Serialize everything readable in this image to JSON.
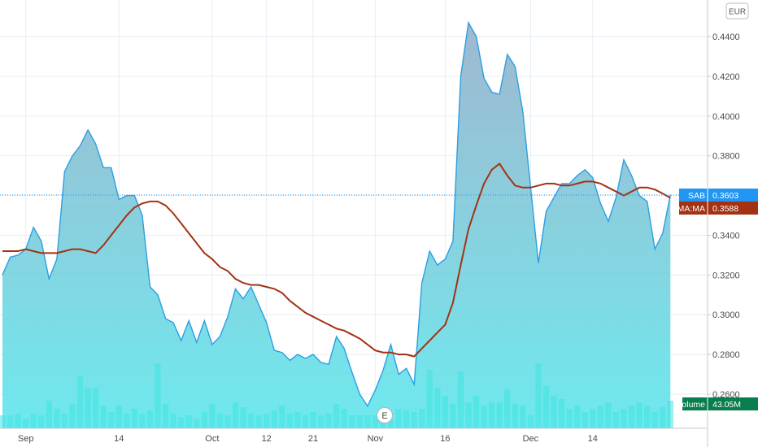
{
  "currency_button": "EUR",
  "event_marker": "E",
  "colors": {
    "price_line": "#2b9ee3",
    "price_fill_top": "#9fb8d0",
    "price_fill_bottom": "#6ee9ee",
    "volume_bar": "#3fe3e0",
    "ema_line": "#a33213",
    "price_tag": "#2196f3",
    "ema_tag": "#a33213",
    "volume_tag": "#0a7d4e",
    "grid": "#e6eef5"
  },
  "chart_data": {
    "type": "area",
    "ylim": [
      0.245,
      0.453
    ],
    "y_ticks": [
      "0.4400",
      "0.4200",
      "0.4000",
      "0.3800",
      "0.3600",
      "0.3400",
      "0.3200",
      "0.3000",
      "0.2800",
      "0.2600"
    ],
    "x_ticks": [
      "Sep",
      "14",
      "Oct",
      "12",
      "21",
      "Nov",
      "16",
      "Dec",
      "14"
    ],
    "x_tick_index": [
      3,
      15,
      27,
      34,
      40,
      48,
      57,
      68,
      76
    ],
    "series": [
      {
        "name": "SAB",
        "kind": "area",
        "last_label": "0.3603",
        "values": [
          0.32,
          0.329,
          0.33,
          0.333,
          0.344,
          0.337,
          0.318,
          0.328,
          0.372,
          0.38,
          0.385,
          0.393,
          0.386,
          0.374,
          0.374,
          0.358,
          0.36,
          0.36,
          0.35,
          0.314,
          0.31,
          0.298,
          0.296,
          0.287,
          0.297,
          0.286,
          0.297,
          0.285,
          0.289,
          0.299,
          0.313,
          0.308,
          0.314,
          0.305,
          0.296,
          0.282,
          0.281,
          0.277,
          0.28,
          0.278,
          0.28,
          0.276,
          0.275,
          0.289,
          0.283,
          0.271,
          0.26,
          0.254,
          0.262,
          0.272,
          0.285,
          0.27,
          0.273,
          0.265,
          0.316,
          0.332,
          0.325,
          0.328,
          0.337,
          0.42,
          0.447,
          0.44,
          0.419,
          0.412,
          0.411,
          0.431,
          0.425,
          0.402,
          0.364,
          0.326,
          0.352,
          0.359,
          0.366,
          0.366,
          0.37,
          0.373,
          0.369,
          0.356,
          0.347,
          0.359,
          0.378,
          0.37,
          0.36,
          0.357,
          0.333,
          0.341,
          0.3603
        ]
      },
      {
        "name": "EMA:MA",
        "kind": "line",
        "last_label": "0.3588",
        "values": [
          0.332,
          0.332,
          0.332,
          0.333,
          0.332,
          0.331,
          0.331,
          0.331,
          0.332,
          0.333,
          0.333,
          0.332,
          0.331,
          0.335,
          0.34,
          0.345,
          0.35,
          0.354,
          0.356,
          0.357,
          0.357,
          0.355,
          0.351,
          0.346,
          0.341,
          0.336,
          0.331,
          0.328,
          0.324,
          0.322,
          0.318,
          0.316,
          0.315,
          0.315,
          0.314,
          0.313,
          0.311,
          0.307,
          0.304,
          0.301,
          0.299,
          0.297,
          0.295,
          0.293,
          0.292,
          0.29,
          0.288,
          0.285,
          0.282,
          0.281,
          0.281,
          0.28,
          0.28,
          0.279,
          0.283,
          0.287,
          0.291,
          0.295,
          0.306,
          0.325,
          0.343,
          0.355,
          0.366,
          0.373,
          0.376,
          0.37,
          0.365,
          0.364,
          0.364,
          0.365,
          0.366,
          0.366,
          0.365,
          0.365,
          0.366,
          0.367,
          0.367,
          0.366,
          0.364,
          0.362,
          0.36,
          0.362,
          0.364,
          0.364,
          0.363,
          0.361,
          0.3588
        ]
      },
      {
        "name": "Volume",
        "kind": "bar",
        "last_label": "43.05M",
        "values": [
          8,
          8,
          9,
          6,
          9,
          8,
          17,
          12,
          9,
          15,
          32,
          25,
          25,
          14,
          10,
          14,
          9,
          12,
          9,
          11,
          40,
          15,
          9,
          7,
          8,
          6,
          10,
          15,
          9,
          8,
          16,
          13,
          9,
          8,
          9,
          11,
          14,
          9,
          10,
          8,
          10,
          8,
          9,
          15,
          12,
          8,
          8,
          8,
          8,
          8,
          5,
          12,
          11,
          10,
          12,
          36,
          25,
          20,
          15,
          35,
          16,
          20,
          14,
          16,
          16,
          24,
          15,
          14,
          8,
          40,
          26,
          20,
          18,
          12,
          14,
          10,
          12,
          14,
          16,
          10,
          12,
          14,
          16,
          14,
          10,
          13,
          17
        ]
      }
    ]
  }
}
